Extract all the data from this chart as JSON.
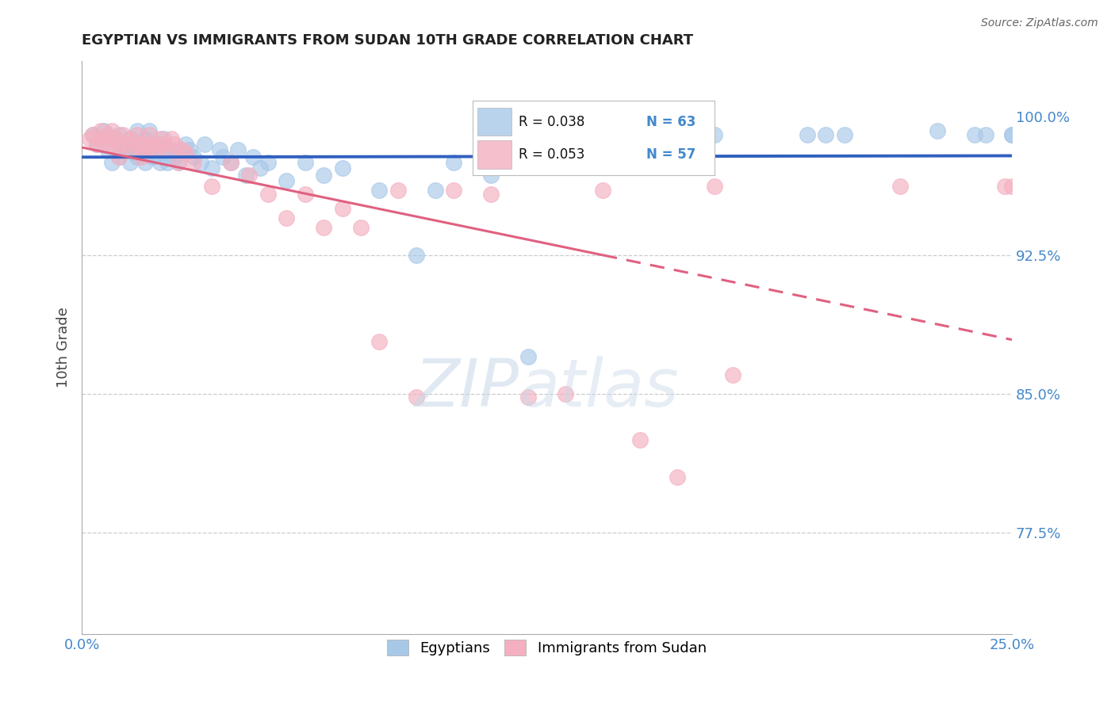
{
  "title": "EGYPTIAN VS IMMIGRANTS FROM SUDAN 10TH GRADE CORRELATION CHART",
  "source": "Source: ZipAtlas.com",
  "ylabel": "10th Grade",
  "xlim": [
    0.0,
    0.25
  ],
  "ylim": [
    0.72,
    1.03
  ],
  "xtick_positions": [
    0.0,
    0.25
  ],
  "xticklabels": [
    "0.0%",
    "25.0%"
  ],
  "ytick_positions": [
    0.775,
    0.85,
    0.925,
    1.0
  ],
  "ytick_labels": [
    "77.5%",
    "85.0%",
    "92.5%",
    "100.0%"
  ],
  "grid_yticks": [
    0.775,
    0.85,
    0.925
  ],
  "legend_R_blue": "R = 0.038",
  "legend_N_blue": "N = 63",
  "legend_R_pink": "R = 0.053",
  "legend_N_pink": "N = 57",
  "legend_label_blue": "Egyptians",
  "legend_label_pink": "Immigrants from Sudan",
  "blue_color": "#a8c8e8",
  "pink_color": "#f4b0c0",
  "trendline_blue_color": "#3060c0",
  "trendline_pink_color": "#e06080",
  "blue_x": [
    0.003,
    0.004,
    0.005,
    0.006,
    0.007,
    0.008,
    0.009,
    0.01,
    0.01,
    0.011,
    0.012,
    0.013,
    0.013,
    0.014,
    0.015,
    0.015,
    0.016,
    0.017,
    0.017,
    0.018,
    0.018,
    0.019,
    0.02,
    0.021,
    0.022,
    0.022,
    0.023,
    0.024,
    0.025,
    0.026,
    0.028,
    0.029,
    0.03,
    0.032,
    0.033,
    0.035,
    0.037,
    0.038,
    0.04,
    0.042,
    0.044,
    0.046,
    0.048,
    0.05,
    0.055,
    0.06,
    0.065,
    0.07,
    0.08,
    0.09,
    0.095,
    0.1,
    0.11,
    0.12,
    0.17,
    0.195,
    0.2,
    0.205,
    0.23,
    0.24,
    0.243,
    0.25,
    0.25
  ],
  "blue_y": [
    0.99,
    0.985,
    0.988,
    0.992,
    0.982,
    0.975,
    0.988,
    0.978,
    0.99,
    0.985,
    0.982,
    0.975,
    0.988,
    0.98,
    0.978,
    0.992,
    0.982,
    0.975,
    0.988,
    0.98,
    0.992,
    0.978,
    0.985,
    0.975,
    0.988,
    0.98,
    0.975,
    0.982,
    0.978,
    0.975,
    0.985,
    0.982,
    0.978,
    0.975,
    0.985,
    0.972,
    0.982,
    0.978,
    0.975,
    0.982,
    0.968,
    0.978,
    0.972,
    0.975,
    0.965,
    0.975,
    0.968,
    0.972,
    0.96,
    0.925,
    0.96,
    0.975,
    0.968,
    0.87,
    0.99,
    0.99,
    0.99,
    0.99,
    0.992,
    0.99,
    0.99,
    0.99,
    0.99
  ],
  "pink_x": [
    0.002,
    0.003,
    0.004,
    0.005,
    0.005,
    0.006,
    0.007,
    0.008,
    0.008,
    0.009,
    0.01,
    0.01,
    0.011,
    0.012,
    0.013,
    0.014,
    0.015,
    0.015,
    0.016,
    0.017,
    0.018,
    0.018,
    0.019,
    0.02,
    0.021,
    0.022,
    0.023,
    0.024,
    0.025,
    0.026,
    0.027,
    0.028,
    0.03,
    0.035,
    0.04,
    0.045,
    0.05,
    0.055,
    0.06,
    0.065,
    0.07,
    0.075,
    0.08,
    0.085,
    0.09,
    0.1,
    0.11,
    0.12,
    0.13,
    0.14,
    0.15,
    0.16,
    0.17,
    0.175,
    0.22,
    0.248,
    0.25
  ],
  "pink_y": [
    0.988,
    0.99,
    0.985,
    0.992,
    0.988,
    0.985,
    0.99,
    0.985,
    0.992,
    0.988,
    0.985,
    0.978,
    0.99,
    0.985,
    0.988,
    0.982,
    0.99,
    0.985,
    0.978,
    0.985,
    0.982,
    0.99,
    0.985,
    0.982,
    0.988,
    0.985,
    0.982,
    0.988,
    0.985,
    0.975,
    0.982,
    0.98,
    0.975,
    0.962,
    0.975,
    0.968,
    0.958,
    0.945,
    0.958,
    0.94,
    0.95,
    0.94,
    0.878,
    0.96,
    0.848,
    0.96,
    0.958,
    0.848,
    0.85,
    0.96,
    0.825,
    0.805,
    0.962,
    0.86,
    0.962,
    0.962,
    0.962
  ]
}
